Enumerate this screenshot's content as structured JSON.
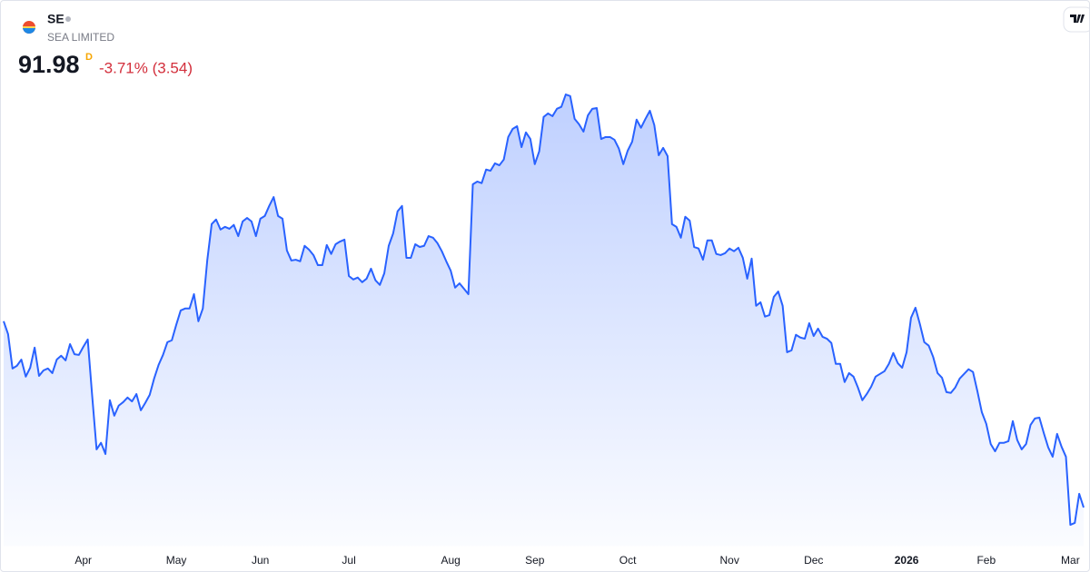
{
  "header": {
    "symbol": "SE",
    "name": "SEA LIMITED",
    "price": "91.98",
    "interval": "D",
    "change": "-3.71% (3.54)"
  },
  "chart_data": {
    "type": "area",
    "color": "#2962ff",
    "values": [
      140.1,
      136.8,
      127.9,
      128.6,
      130.2,
      125.8,
      128.1,
      133.3,
      126.0,
      127.4,
      127.9,
      126.7,
      130.2,
      131.2,
      130.0,
      134.2,
      131.6,
      131.4,
      133.5,
      135.4,
      120.9,
      107.0,
      108.7,
      105.8,
      119.7,
      115.7,
      118.3,
      119.2,
      120.4,
      119.4,
      121.3,
      117.1,
      119.0,
      121.1,
      125.3,
      128.8,
      131.4,
      134.7,
      135.2,
      139.2,
      142.9,
      143.4,
      143.4,
      147.1,
      140.1,
      143.4,
      155.8,
      165.2,
      166.4,
      163.8,
      164.5,
      164.0,
      165.0,
      162.1,
      165.9,
      166.8,
      165.9,
      162.1,
      166.6,
      167.3,
      169.9,
      172.2,
      167.3,
      166.6,
      158.4,
      155.8,
      156.0,
      155.6,
      159.6,
      158.6,
      157.2,
      154.6,
      154.6,
      159.8,
      157.5,
      160.0,
      160.7,
      161.2,
      151.8,
      150.9,
      151.4,
      150.2,
      151.1,
      153.7,
      150.7,
      149.5,
      152.5,
      159.6,
      162.8,
      168.5,
      169.9,
      156.5,
      156.5,
      160.0,
      159.3,
      159.6,
      162.1,
      161.7,
      160.3,
      158.2,
      155.6,
      153.2,
      148.8,
      149.9,
      148.5,
      147.1,
      175.5,
      176.2,
      175.8,
      179.3,
      179.0,
      180.9,
      180.4,
      181.9,
      187.7,
      189.8,
      190.5,
      185.1,
      188.9,
      187.2,
      180.7,
      184.0,
      192.9,
      193.8,
      193.1,
      195.0,
      195.5,
      198.7,
      198.3,
      192.4,
      191.0,
      189.1,
      193.3,
      195.0,
      195.2,
      187.2,
      187.7,
      187.7,
      187.0,
      184.7,
      180.7,
      184.2,
      186.5,
      192.2,
      190.1,
      192.4,
      194.5,
      190.8,
      183.0,
      184.9,
      182.8,
      165.2,
      164.5,
      161.7,
      167.1,
      166.1,
      159.3,
      158.9,
      156.0,
      161.0,
      161.0,
      157.5,
      157.2,
      157.7,
      158.9,
      158.2,
      159.1,
      156.5,
      151.1,
      156.3,
      144.1,
      145.0,
      141.3,
      141.7,
      146.4,
      147.8,
      144.1,
      132.1,
      132.6,
      136.6,
      135.9,
      135.6,
      139.6,
      136.3,
      138.2,
      136.1,
      135.6,
      134.5,
      129.1,
      129.1,
      124.4,
      126.7,
      125.8,
      123.0,
      119.7,
      121.3,
      123.2,
      125.8,
      126.5,
      127.2,
      129.1,
      131.9,
      129.3,
      128.1,
      132.1,
      141.0,
      143.6,
      139.4,
      134.7,
      133.8,
      130.9,
      126.7,
      125.5,
      121.8,
      121.6,
      123.0,
      125.3,
      126.5,
      127.7,
      127.0,
      122.0,
      116.6,
      113.6,
      108.4,
      106.5,
      108.7,
      108.7,
      109.1,
      114.3,
      109.4,
      107.0,
      108.4,
      113.3,
      115.0,
      115.2,
      111.2,
      107.5,
      105.1,
      111.0,
      107.7,
      105.1,
      87.5,
      88.0,
      95.52,
      91.98
    ],
    "xlim": [
      0,
      244
    ],
    "xticks": [
      {
        "value": 18,
        "label": "Apr"
      },
      {
        "value": 39,
        "label": "May"
      },
      {
        "value": 58,
        "label": "Jun"
      },
      {
        "value": 78,
        "label": "Jul"
      },
      {
        "value": 101,
        "label": "Aug"
      },
      {
        "value": 120,
        "label": "Sep"
      },
      {
        "value": 141,
        "label": "Oct"
      },
      {
        "value": 164,
        "label": "Nov"
      },
      {
        "value": 183,
        "label": "Dec"
      },
      {
        "value": 204,
        "label": "2026"
      },
      {
        "value": 222,
        "label": "Feb"
      },
      {
        "value": 241,
        "label": "Mar"
      }
    ],
    "ylim": [
      82,
      202
    ]
  }
}
